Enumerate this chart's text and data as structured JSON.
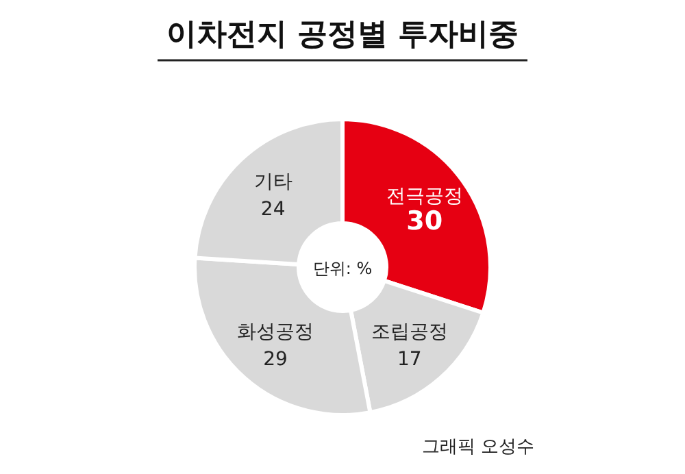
{
  "chart_data": {
    "type": "donut",
    "title": "이차전지 공정별 투자비중",
    "categories": [
      "전극공정",
      "조립공정",
      "화성공정",
      "기타"
    ],
    "values": [
      30,
      17,
      29,
      24
    ],
    "colors": [
      "#e60012",
      "#d9d9d9",
      "#d9d9d9",
      "#d9d9d9"
    ],
    "data_labels": true,
    "annotations": [
      "단위: %",
      "그래픽 오성수"
    ]
  }
}
